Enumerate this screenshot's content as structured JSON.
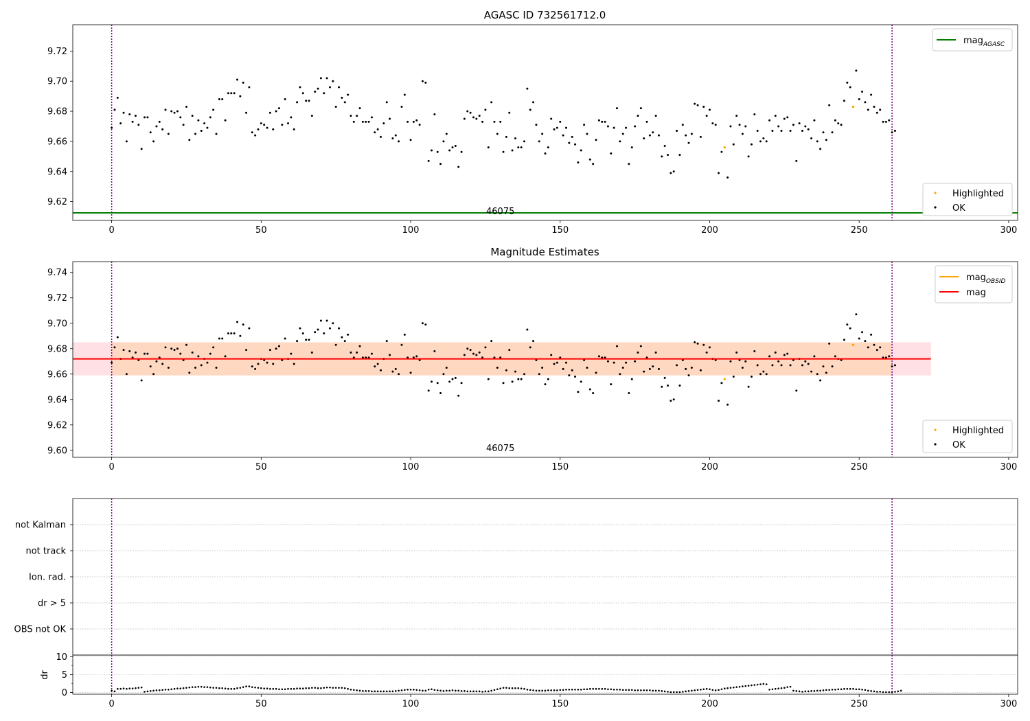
{
  "chart_data": [
    {
      "id": "p1",
      "type": "scatter",
      "title": "AGASC ID 732561712.0",
      "xlim": [
        -13,
        303
      ],
      "ylim": [
        9.6075,
        9.7375
      ],
      "x_ticks": [
        0,
        50,
        100,
        150,
        200,
        250,
        300
      ],
      "y_ticks": [
        9.62,
        9.64,
        9.66,
        9.68,
        9.7,
        9.72
      ],
      "y_tick_labels": [
        "9.62",
        "9.64",
        "9.66",
        "9.68",
        "9.70",
        "9.72"
      ],
      "obsid_label": "46075",
      "obsid_label_x": 130,
      "vlines": [
        0,
        261
      ],
      "hline": {
        "value": 9.6125,
        "color": "#008000"
      },
      "legend_top": [
        {
          "label": "mag",
          "sub": "AGASC",
          "color": "#008000"
        }
      ],
      "legend_bottom": [
        {
          "label": "Highlighted",
          "color": "#ffa500"
        },
        {
          "label": "OK",
          "color": "#000000"
        }
      ]
    },
    {
      "id": "p2",
      "type": "scatter",
      "title": "Magnitude Estimates",
      "xlim": [
        -13,
        303
      ],
      "ylim": [
        9.5945,
        9.7485
      ],
      "x_ticks": [
        0,
        50,
        100,
        150,
        200,
        250,
        300
      ],
      "y_ticks": [
        9.6,
        9.62,
        9.64,
        9.66,
        9.68,
        9.7,
        9.72,
        9.74
      ],
      "y_tick_labels": [
        "9.60",
        "9.62",
        "9.64",
        "9.66",
        "9.68",
        "9.70",
        "9.72",
        "9.74"
      ],
      "obsid_label": "46075",
      "obsid_label_x": 130,
      "vlines": [
        0,
        261
      ],
      "mag_line": {
        "value": 9.672,
        "x_range": [
          -13,
          274
        ],
        "color": "#ff0000"
      },
      "obsid_band": {
        "low": 9.659,
        "high": 9.685,
        "x_range": [
          -13,
          274
        ]
      },
      "legend_top": [
        {
          "label": "mag",
          "sub": "OBSID",
          "color": "#ffa500"
        },
        {
          "label": "mag",
          "sub": "",
          "color": "#ff0000"
        }
      ],
      "legend_bottom": [
        {
          "label": "Highlighted",
          "color": "#ffa500"
        },
        {
          "label": "OK",
          "color": "#000000"
        }
      ]
    },
    {
      "id": "p3",
      "type": "scatter",
      "xlim": [
        -13,
        303
      ],
      "flags": [
        "not Kalman",
        "not track",
        "Ion. rad.",
        "dr > 5",
        "OBS not OK"
      ],
      "flag_points": [],
      "vlines": [
        0,
        261
      ]
    },
    {
      "id": "p4",
      "type": "scatter",
      "ylabel": "dr",
      "xlim": [
        -13,
        303
      ],
      "ylim": [
        -0.5,
        10.5
      ],
      "x_ticks": [
        0,
        50,
        100,
        150,
        200,
        250,
        300
      ],
      "y_ticks": [
        0,
        5,
        10
      ],
      "vlines": [
        0,
        261
      ]
    }
  ],
  "series": {
    "mag": [
      9.669,
      9.681,
      9.689,
      9.672,
      9.679,
      9.66,
      9.678,
      9.673,
      9.677,
      9.671,
      9.655,
      9.676,
      9.676,
      9.666,
      9.66,
      9.67,
      9.673,
      9.668,
      9.681,
      9.665,
      9.68,
      9.679,
      9.68,
      9.676,
      9.671,
      9.683,
      9.661,
      9.677,
      9.665,
      9.674,
      9.667,
      9.672,
      9.669,
      9.676,
      9.681,
      9.665,
      9.688,
      9.688,
      9.674,
      9.692,
      9.692,
      9.692,
      9.701,
      9.69,
      9.699,
      9.679,
      9.696,
      9.666,
      9.664,
      9.668,
      9.672,
      9.671,
      9.669,
      9.679,
      9.668,
      9.68,
      9.682,
      9.671,
      9.688,
      9.672,
      9.676,
      9.668,
      9.686,
      9.696,
      9.692,
      9.687,
      9.687,
      9.677,
      9.693,
      9.695,
      9.702,
      9.692,
      9.702,
      9.696,
      9.7,
      9.683,
      9.696,
      9.689,
      9.686,
      9.691,
      9.677,
      9.673,
      9.677,
      9.682,
      9.673,
      9.673,
      9.673,
      9.676,
      9.666,
      9.668,
      9.663,
      9.672,
      9.686,
      9.675,
      9.662,
      9.664,
      9.66,
      9.683,
      9.691,
      9.673,
      9.661,
      9.673,
      9.674,
      9.671,
      9.7,
      9.699,
      9.647,
      9.654,
      9.678,
      9.653,
      9.645,
      9.66,
      9.665,
      9.654,
      9.656,
      9.657,
      9.643,
      9.653,
      9.675,
      9.68,
      9.679,
      9.676,
      9.675,
      9.677,
      9.673,
      9.681,
      9.656,
      9.686,
      9.673,
      9.665,
      9.673,
      9.653,
      9.663,
      9.679,
      9.654,
      9.662,
      9.656,
      9.656,
      9.66,
      9.695,
      9.681,
      9.686,
      9.671,
      9.66,
      9.665,
      9.652,
      9.656,
      9.675,
      9.668,
      9.669,
      9.673,
      9.664,
      9.669,
      9.659,
      9.663,
      9.658,
      9.646,
      9.654,
      9.671,
      9.665,
      9.648,
      9.645,
      9.661,
      9.674,
      9.673,
      9.673,
      9.67,
      9.652,
      9.669,
      9.682,
      9.66,
      9.665,
      9.669,
      9.645,
      9.656,
      9.67,
      9.677,
      9.682,
      9.662,
      9.673,
      9.664,
      9.666,
      9.677,
      9.664,
      9.65,
      9.657,
      9.651,
      9.639,
      9.64,
      9.667,
      9.651,
      9.671,
      9.664,
      9.659,
      9.665,
      9.685,
      9.684,
      9.663,
      9.683,
      9.677,
      9.681,
      9.672,
      9.671,
      9.639,
      9.653,
      9.656,
      9.636,
      9.67,
      9.658,
      9.677,
      9.671,
      9.665,
      9.67,
      9.65,
      9.658,
      9.678,
      9.667,
      9.66,
      9.662,
      9.66,
      9.674,
      9.667,
      9.677,
      9.67,
      9.667,
      9.675,
      9.676,
      9.667,
      9.671,
      9.647,
      9.672,
      9.667,
      9.67,
      9.668,
      9.662,
      9.674,
      9.66,
      9.655,
      9.666,
      9.661,
      9.684,
      9.666,
      9.674,
      9.672,
      9.671,
      9.687,
      9.699,
      9.696,
      9.683,
      9.707,
      9.688,
      9.693,
      9.686,
      9.681,
      9.691,
      9.683,
      9.679,
      9.681,
      9.673,
      9.673,
      9.674,
      9.666,
      9.667
    ],
    "highlighted_indices": [
      205,
      248
    ],
    "dr": [
      0.5,
      0.3,
      1.0,
      1.0,
      1.1,
      1.0,
      1.1,
      1.1,
      1.2,
      1.3,
      1.4,
      0.2,
      0.3,
      0.4,
      0.5,
      0.6,
      0.6,
      0.7,
      0.8,
      0.8,
      0.9,
      1.0,
      1.1,
      1.1,
      1.2,
      1.3,
      1.4,
      1.5,
      1.5,
      1.6,
      1.6,
      1.5,
      1.5,
      1.4,
      1.3,
      1.3,
      1.2,
      1.2,
      1.1,
      1.0,
      1.0,
      1.0,
      1.2,
      1.3,
      1.5,
      1.7,
      1.7,
      1.5,
      1.4,
      1.3,
      1.2,
      1.1,
      1.1,
      1.0,
      1.0,
      1.0,
      0.9,
      0.9,
      0.9,
      1.0,
      1.0,
      1.0,
      1.1,
      1.1,
      1.1,
      1.2,
      1.2,
      1.3,
      1.3,
      1.2,
      1.2,
      1.3,
      1.4,
      1.4,
      1.3,
      1.3,
      1.3,
      1.3,
      1.2,
      1.0,
      0.8,
      0.7,
      0.6,
      0.5,
      0.4,
      0.4,
      0.4,
      0.3,
      0.3,
      0.3,
      0.3,
      0.3,
      0.3,
      0.3,
      0.3,
      0.4,
      0.5,
      0.6,
      0.7,
      0.8,
      0.8,
      0.8,
      0.7,
      0.6,
      0.5,
      0.5,
      0.8,
      0.9,
      0.7,
      0.6,
      0.5,
      0.4,
      0.5,
      0.5,
      0.6,
      0.5,
      0.5,
      0.4,
      0.4,
      0.3,
      0.3,
      0.3,
      0.3,
      0.3,
      0.2,
      0.3,
      0.3,
      0.5,
      0.7,
      0.9,
      1.1,
      1.3,
      1.3,
      1.2,
      1.2,
      1.2,
      1.2,
      1.1,
      1.0,
      0.8,
      0.7,
      0.6,
      0.5,
      0.5,
      0.5,
      0.5,
      0.6,
      0.6,
      0.6,
      0.6,
      0.7,
      0.7,
      0.8,
      0.8,
      0.8,
      0.8,
      0.8,
      0.8,
      0.9,
      0.9,
      1.0,
      1.0,
      1.0,
      1.0,
      1.0,
      1.0,
      0.9,
      0.9,
      0.8,
      0.8,
      0.8,
      0.7,
      0.7,
      0.7,
      0.7,
      0.6,
      0.6,
      0.6,
      0.6,
      0.6,
      0.6,
      0.5,
      0.5,
      0.5,
      0.4,
      0.3,
      0.2,
      0.1,
      0.1,
      0.1,
      0.1,
      0.2,
      0.3,
      0.4,
      0.5,
      0.6,
      0.7,
      0.8,
      0.9,
      1.0,
      0.9,
      0.7,
      0.6,
      0.7,
      0.9,
      1.1,
      1.2,
      1.3,
      1.4,
      1.5,
      1.6,
      1.7,
      1.8,
      1.9,
      2.0,
      2.1,
      2.2,
      2.3,
      2.4,
      2.3,
      0.8,
      0.9,
      1.0,
      1.1,
      1.2,
      1.3,
      1.5,
      1.6,
      0.5,
      0.4,
      0.3,
      0.2,
      0.3,
      0.3,
      0.4,
      0.4,
      0.5,
      0.5,
      0.6,
      0.7,
      0.7,
      0.8,
      0.8,
      0.9,
      0.9,
      1.0,
      1.0,
      1.0,
      1.0,
      0.9,
      0.9,
      0.8,
      0.7,
      0.5,
      0.4,
      0.3,
      0.2,
      0.2,
      0.1,
      0.1,
      0.1,
      0.1,
      0.2,
      0.3,
      0.5
    ]
  }
}
